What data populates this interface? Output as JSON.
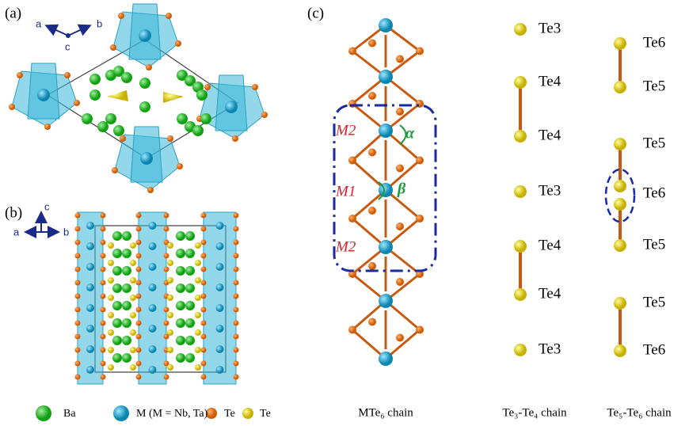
{
  "panel_a": {
    "label": "(a)",
    "axes": [
      "a",
      "b",
      "c"
    ]
  },
  "panel_b": {
    "label": "(b)",
    "axes": [
      "c",
      "a",
      "b"
    ]
  },
  "legend": [
    "Ba",
    "M (M = Nb, Ta)",
    "Te",
    "Te"
  ],
  "panel_c": {
    "label": "(c)",
    "chain_labels": [
      "M2",
      "M1",
      "M2"
    ],
    "angles": [
      "α",
      "β"
    ],
    "caption": "MTe₆ chain",
    "te34": {
      "atoms": [
        "Te3",
        "Te4",
        "Te4",
        "Te3",
        "Te4",
        "Te4",
        "Te3"
      ],
      "caption": "Te₃-Te₄ chain"
    },
    "te56": {
      "atoms": [
        "Te6",
        "Te5",
        "Te5",
        "Te6",
        "Te5",
        "Te5",
        "Te6"
      ],
      "caption": "Te₅-Te₆ chain"
    }
  }
}
